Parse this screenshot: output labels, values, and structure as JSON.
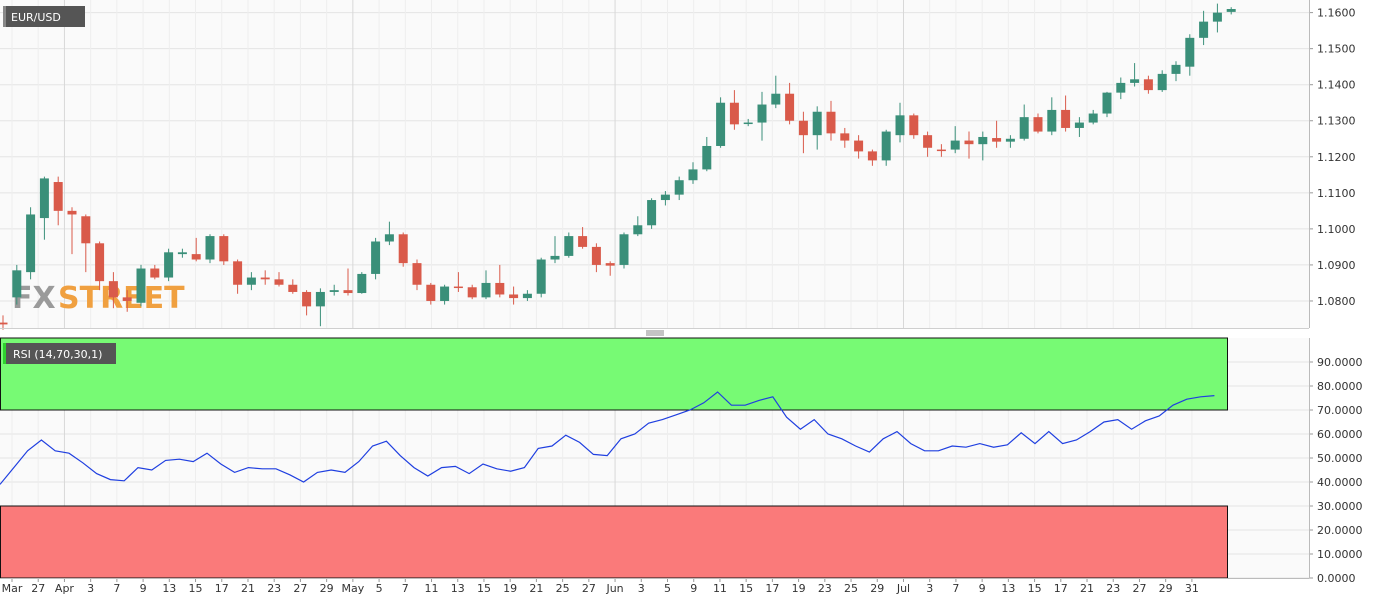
{
  "chart_data": [
    {
      "type": "candlestick",
      "symbol": "EUR/USD",
      "watermark": {
        "left": "FX",
        "right": "STREET"
      },
      "ylim": [
        1.0725,
        1.1635
      ],
      "y_ticks": [
        "1.0800",
        "1.0900",
        "1.1000",
        "1.1100",
        "1.1200",
        "1.1300",
        "1.1400",
        "1.1500",
        "1.1600"
      ],
      "x_ticks": [
        "Mar",
        "27",
        "Apr",
        "3",
        "7",
        "9",
        "13",
        "15",
        "17",
        "21",
        "23",
        "27",
        "29",
        "May",
        "5",
        "7",
        "11",
        "13",
        "15",
        "19",
        "21",
        "25",
        "27",
        "Jun",
        "3",
        "5",
        "9",
        "11",
        "15",
        "17",
        "19",
        "23",
        "25",
        "29",
        "Jul",
        "3",
        "7",
        "9",
        "13",
        "15",
        "17",
        "21",
        "23",
        "27",
        "29",
        "31"
      ],
      "candles": [
        {
          "o": 1.074,
          "h": 1.076,
          "l": 1.072,
          "c": 1.0735
        },
        {
          "o": 1.081,
          "h": 1.09,
          "l": 1.079,
          "c": 1.0885
        },
        {
          "o": 1.088,
          "h": 1.106,
          "l": 1.086,
          "c": 1.104
        },
        {
          "o": 1.103,
          "h": 1.1145,
          "l": 1.097,
          "c": 1.114
        },
        {
          "o": 1.113,
          "h": 1.1145,
          "l": 1.101,
          "c": 1.105
        },
        {
          "o": 1.105,
          "h": 1.106,
          "l": 1.093,
          "c": 1.104
        },
        {
          "o": 1.1035,
          "h": 1.104,
          "l": 1.088,
          "c": 1.096
        },
        {
          "o": 1.096,
          "h": 1.0965,
          "l": 1.083,
          "c": 1.0855
        },
        {
          "o": 1.0855,
          "h": 1.088,
          "l": 1.078,
          "c": 1.081
        },
        {
          "o": 1.081,
          "h": 1.083,
          "l": 1.077,
          "c": 1.08
        },
        {
          "o": 1.0795,
          "h": 1.09,
          "l": 1.0785,
          "c": 1.089
        },
        {
          "o": 1.089,
          "h": 1.09,
          "l": 1.086,
          "c": 1.0865
        },
        {
          "o": 1.0865,
          "h": 1.0945,
          "l": 1.0855,
          "c": 1.0935
        },
        {
          "o": 1.093,
          "h": 1.0945,
          "l": 1.092,
          "c": 1.0935
        },
        {
          "o": 1.093,
          "h": 1.0975,
          "l": 1.091,
          "c": 1.0915
        },
        {
          "o": 1.0915,
          "h": 1.0985,
          "l": 1.0905,
          "c": 1.098
        },
        {
          "o": 1.098,
          "h": 1.0985,
          "l": 1.09,
          "c": 1.091
        },
        {
          "o": 1.091,
          "h": 1.0915,
          "l": 1.082,
          "c": 1.0845
        },
        {
          "o": 1.0845,
          "h": 1.088,
          "l": 1.083,
          "c": 1.0865
        },
        {
          "o": 1.0865,
          "h": 1.0885,
          "l": 1.0845,
          "c": 1.086
        },
        {
          "o": 1.086,
          "h": 1.088,
          "l": 1.084,
          "c": 1.0845
        },
        {
          "o": 1.0845,
          "h": 1.086,
          "l": 1.082,
          "c": 1.0825
        },
        {
          "o": 1.0825,
          "h": 1.083,
          "l": 1.076,
          "c": 1.0785
        },
        {
          "o": 1.0785,
          "h": 1.0835,
          "l": 1.073,
          "c": 1.0825
        },
        {
          "o": 1.0825,
          "h": 1.0845,
          "l": 1.0815,
          "c": 1.083
        },
        {
          "o": 1.083,
          "h": 1.089,
          "l": 1.0815,
          "c": 1.0822
        },
        {
          "o": 1.0822,
          "h": 1.088,
          "l": 1.082,
          "c": 1.0875
        },
        {
          "o": 1.0875,
          "h": 1.0975,
          "l": 1.086,
          "c": 1.0965
        },
        {
          "o": 1.0965,
          "h": 1.102,
          "l": 1.0955,
          "c": 1.0985
        },
        {
          "o": 1.0985,
          "h": 1.099,
          "l": 1.0895,
          "c": 1.0905
        },
        {
          "o": 1.0905,
          "h": 1.0915,
          "l": 1.083,
          "c": 1.0845
        },
        {
          "o": 1.0845,
          "h": 1.085,
          "l": 1.079,
          "c": 1.08
        },
        {
          "o": 1.08,
          "h": 1.0845,
          "l": 1.079,
          "c": 1.084
        },
        {
          "o": 1.084,
          "h": 1.088,
          "l": 1.0825,
          "c": 1.0838
        },
        {
          "o": 1.0838,
          "h": 1.0845,
          "l": 1.0805,
          "c": 1.081
        },
        {
          "o": 1.081,
          "h": 1.0885,
          "l": 1.0805,
          "c": 1.085
        },
        {
          "o": 1.085,
          "h": 1.09,
          "l": 1.081,
          "c": 1.0818
        },
        {
          "o": 1.0818,
          "h": 1.084,
          "l": 1.079,
          "c": 1.0808
        },
        {
          "o": 1.0808,
          "h": 1.083,
          "l": 1.08,
          "c": 1.082
        },
        {
          "o": 1.082,
          "h": 1.092,
          "l": 1.081,
          "c": 1.0915
        },
        {
          "o": 1.0915,
          "h": 1.098,
          "l": 1.0905,
          "c": 1.0925
        },
        {
          "o": 1.0925,
          "h": 1.099,
          "l": 1.092,
          "c": 1.098
        },
        {
          "o": 1.098,
          "h": 1.1005,
          "l": 1.0945,
          "c": 1.095
        },
        {
          "o": 1.095,
          "h": 1.096,
          "l": 1.088,
          "c": 1.09
        },
        {
          "o": 1.0905,
          "h": 1.091,
          "l": 1.087,
          "c": 1.0898
        },
        {
          "o": 1.09,
          "h": 1.099,
          "l": 1.089,
          "c": 1.0985
        },
        {
          "o": 1.0985,
          "h": 1.1035,
          "l": 1.098,
          "c": 1.101
        },
        {
          "o": 1.101,
          "h": 1.1085,
          "l": 1.1,
          "c": 1.108
        },
        {
          "o": 1.108,
          "h": 1.1105,
          "l": 1.1065,
          "c": 1.1095
        },
        {
          "o": 1.1095,
          "h": 1.1145,
          "l": 1.108,
          "c": 1.1135
        },
        {
          "o": 1.1135,
          "h": 1.1185,
          "l": 1.1125,
          "c": 1.1165
        },
        {
          "o": 1.1165,
          "h": 1.1255,
          "l": 1.116,
          "c": 1.123
        },
        {
          "o": 1.123,
          "h": 1.1365,
          "l": 1.1225,
          "c": 1.135
        },
        {
          "o": 1.135,
          "h": 1.1385,
          "l": 1.1275,
          "c": 1.129
        },
        {
          "o": 1.1292,
          "h": 1.1305,
          "l": 1.1285,
          "c": 1.1295
        },
        {
          "o": 1.1295,
          "h": 1.138,
          "l": 1.1245,
          "c": 1.1345
        },
        {
          "o": 1.1345,
          "h": 1.1425,
          "l": 1.1335,
          "c": 1.1375
        },
        {
          "o": 1.1375,
          "h": 1.1405,
          "l": 1.129,
          "c": 1.13
        },
        {
          "o": 1.13,
          "h": 1.1325,
          "l": 1.121,
          "c": 1.126
        },
        {
          "o": 1.126,
          "h": 1.134,
          "l": 1.122,
          "c": 1.1325
        },
        {
          "o": 1.1325,
          "h": 1.1355,
          "l": 1.1245,
          "c": 1.1265
        },
        {
          "o": 1.1265,
          "h": 1.128,
          "l": 1.1225,
          "c": 1.1245
        },
        {
          "o": 1.1245,
          "h": 1.126,
          "l": 1.1195,
          "c": 1.1215
        },
        {
          "o": 1.1215,
          "h": 1.122,
          "l": 1.1175,
          "c": 1.119
        },
        {
          "o": 1.119,
          "h": 1.1275,
          "l": 1.1175,
          "c": 1.127
        },
        {
          "o": 1.126,
          "h": 1.135,
          "l": 1.124,
          "c": 1.1315
        },
        {
          "o": 1.1315,
          "h": 1.132,
          "l": 1.125,
          "c": 1.126
        },
        {
          "o": 1.126,
          "h": 1.127,
          "l": 1.12,
          "c": 1.1225
        },
        {
          "o": 1.122,
          "h": 1.1235,
          "l": 1.12,
          "c": 1.1218
        },
        {
          "o": 1.122,
          "h": 1.1285,
          "l": 1.121,
          "c": 1.1245
        },
        {
          "o": 1.1245,
          "h": 1.127,
          "l": 1.1195,
          "c": 1.1235
        },
        {
          "o": 1.1235,
          "h": 1.127,
          "l": 1.119,
          "c": 1.1255
        },
        {
          "o": 1.1252,
          "h": 1.13,
          "l": 1.1225,
          "c": 1.1242
        },
        {
          "o": 1.1242,
          "h": 1.126,
          "l": 1.1225,
          "c": 1.125
        },
        {
          "o": 1.125,
          "h": 1.1345,
          "l": 1.1245,
          "c": 1.131
        },
        {
          "o": 1.131,
          "h": 1.132,
          "l": 1.1265,
          "c": 1.127
        },
        {
          "o": 1.127,
          "h": 1.1365,
          "l": 1.126,
          "c": 1.133
        },
        {
          "o": 1.133,
          "h": 1.137,
          "l": 1.127,
          "c": 1.128
        },
        {
          "o": 1.128,
          "h": 1.131,
          "l": 1.1255,
          "c": 1.1295
        },
        {
          "o": 1.1295,
          "h": 1.133,
          "l": 1.129,
          "c": 1.132
        },
        {
          "o": 1.132,
          "h": 1.138,
          "l": 1.131,
          "c": 1.1378
        },
        {
          "o": 1.1378,
          "h": 1.142,
          "l": 1.136,
          "c": 1.1405
        },
        {
          "o": 1.1405,
          "h": 1.146,
          "l": 1.1395,
          "c": 1.1415
        },
        {
          "o": 1.1415,
          "h": 1.1425,
          "l": 1.1375,
          "c": 1.1385
        },
        {
          "o": 1.1385,
          "h": 1.144,
          "l": 1.138,
          "c": 1.143
        },
        {
          "o": 1.143,
          "h": 1.1465,
          "l": 1.141,
          "c": 1.1455
        },
        {
          "o": 1.145,
          "h": 1.154,
          "l": 1.1425,
          "c": 1.153
        },
        {
          "o": 1.153,
          "h": 1.1605,
          "l": 1.151,
          "c": 1.1575
        },
        {
          "o": 1.1575,
          "h": 1.1625,
          "l": 1.1545,
          "c": 1.16
        },
        {
          "o": 1.1602,
          "h": 1.1615,
          "l": 1.1595,
          "c": 1.161
        }
      ]
    },
    {
      "type": "line",
      "legend": "RSI (14,70,30,1)",
      "ylim": [
        0,
        100
      ],
      "y_ticks": [
        "0.0000",
        "10.0000",
        "20.0000",
        "30.0000",
        "40.0000",
        "50.0000",
        "60.0000",
        "70.0000",
        "80.0000",
        "90.0000"
      ],
      "overbought": 70,
      "oversold": 30,
      "values": [
        39,
        46,
        53,
        57.5,
        53,
        52,
        48,
        43.5,
        41,
        40.5,
        46,
        45,
        49,
        49.5,
        48.5,
        52,
        47.5,
        44,
        46,
        45.5,
        45.5,
        43,
        40,
        44,
        45,
        44,
        48.5,
        55,
        57,
        51,
        46,
        42.5,
        46,
        46.5,
        43.5,
        47.5,
        45.5,
        44.5,
        46,
        54,
        55,
        59.5,
        56.5,
        51.5,
        51,
        58,
        60,
        64.5,
        66,
        68,
        70,
        73,
        77.5,
        72,
        72,
        74,
        75.5,
        67,
        62,
        66,
        60,
        58,
        55,
        52.5,
        58,
        61,
        56,
        53,
        53,
        55,
        54.5,
        56,
        54.5,
        55.5,
        60.5,
        56,
        61,
        56,
        57.5,
        61,
        65,
        66,
        62,
        65.5,
        67.5,
        72,
        74.5,
        75.5,
        76
      ]
    }
  ],
  "colors": {
    "bull": "#3a8f79",
    "bear": "#d95a4a",
    "rsi_line": "#1f3fe0",
    "overbought_zone": "#77fa74",
    "oversold_zone": "#fa7a7a",
    "badge_bg": "#555555",
    "watermark_left": "#9a9a9a",
    "watermark_right": "#f0a040"
  }
}
